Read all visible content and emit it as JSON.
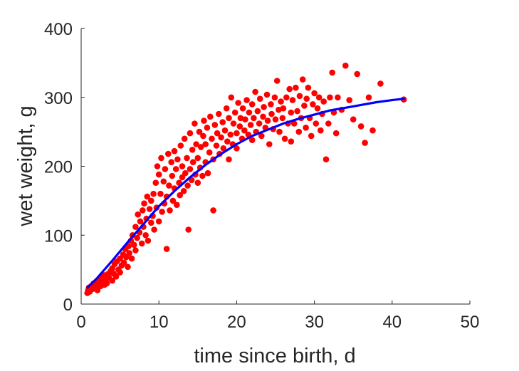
{
  "chart_data": {
    "type": "scatter",
    "xlabel": "time since birth, d",
    "ylabel": "wet weight, g",
    "xlim": [
      0,
      50
    ],
    "ylim": [
      0,
      400
    ],
    "xticks": [
      "0",
      "10",
      "20",
      "30",
      "40",
      "50"
    ],
    "yticks": [
      "0",
      "100",
      "200",
      "300",
      "400"
    ],
    "grid": false,
    "box": "left-bottom axes only",
    "series": [
      {
        "kind": "points",
        "color": "#ff0000",
        "points": [
          [
            0.8,
            16
          ],
          [
            0.9,
            20
          ],
          [
            1.0,
            24
          ],
          [
            1.1,
            18
          ],
          [
            1.3,
            26
          ],
          [
            1.5,
            22
          ],
          [
            1.6,
            30
          ],
          [
            1.8,
            25
          ],
          [
            2.0,
            28
          ],
          [
            2.1,
            20
          ],
          [
            2.2,
            34
          ],
          [
            2.4,
            30
          ],
          [
            2.5,
            26
          ],
          [
            2.6,
            38
          ],
          [
            2.8,
            32
          ],
          [
            3.0,
            28
          ],
          [
            3.0,
            42
          ],
          [
            3.2,
            36
          ],
          [
            3.3,
            30
          ],
          [
            3.5,
            44
          ],
          [
            3.6,
            38
          ],
          [
            3.8,
            48
          ],
          [
            4.0,
            34
          ],
          [
            4.0,
            52
          ],
          [
            4.2,
            44
          ],
          [
            4.3,
            58
          ],
          [
            4.5,
            40
          ],
          [
            4.6,
            62
          ],
          [
            4.8,
            50
          ],
          [
            5.0,
            46
          ],
          [
            5.0,
            66
          ],
          [
            5.2,
            56
          ],
          [
            5.4,
            72
          ],
          [
            5.5,
            60
          ],
          [
            5.7,
            80
          ],
          [
            5.8,
            68
          ],
          [
            6.0,
            54
          ],
          [
            6.1,
            84
          ],
          [
            6.2,
            74
          ],
          [
            6.4,
            92
          ],
          [
            6.5,
            66
          ],
          [
            6.6,
            100
          ],
          [
            6.8,
            86
          ],
          [
            7.0,
            78
          ],
          [
            7.0,
            112
          ],
          [
            7.2,
            96
          ],
          [
            7.3,
            130
          ],
          [
            7.5,
            104
          ],
          [
            7.6,
            120
          ],
          [
            7.8,
            88
          ],
          [
            7.9,
            136
          ],
          [
            8.0,
            112
          ],
          [
            8.1,
            146
          ],
          [
            8.3,
            100
          ],
          [
            8.4,
            124
          ],
          [
            8.5,
            156
          ],
          [
            8.6,
            92
          ],
          [
            8.8,
            138
          ],
          [
            9.0,
            118
          ],
          [
            9.0,
            150
          ],
          [
            9.2,
            128
          ],
          [
            9.3,
            160
          ],
          [
            9.4,
            108
          ],
          [
            9.6,
            176
          ],
          [
            9.7,
            140
          ],
          [
            9.8,
            200
          ],
          [
            10.0,
            120
          ],
          [
            10.0,
            188
          ],
          [
            10.2,
            160
          ],
          [
            10.3,
            212
          ],
          [
            10.4,
            134
          ],
          [
            10.6,
            178
          ],
          [
            10.7,
            146
          ],
          [
            10.8,
            196
          ],
          [
            11.0,
            80
          ],
          [
            11.0,
            156
          ],
          [
            11.2,
            218
          ],
          [
            11.3,
            172
          ],
          [
            11.4,
            136
          ],
          [
            11.6,
            206
          ],
          [
            11.7,
            186
          ],
          [
            11.8,
            150
          ],
          [
            12.0,
            168
          ],
          [
            12.0,
            222
          ],
          [
            12.2,
            196
          ],
          [
            12.3,
            144
          ],
          [
            12.4,
            210
          ],
          [
            12.6,
            176
          ],
          [
            12.7,
            158
          ],
          [
            12.8,
            230
          ],
          [
            13.0,
            184
          ],
          [
            13.0,
            200
          ],
          [
            13.2,
            164
          ],
          [
            13.3,
            240
          ],
          [
            13.4,
            190
          ],
          [
            13.6,
            212
          ],
          [
            13.7,
            172
          ],
          [
            13.8,
            108
          ],
          [
            14.0,
            196
          ],
          [
            14.0,
            248
          ],
          [
            14.2,
            180
          ],
          [
            14.3,
            224
          ],
          [
            14.4,
            206
          ],
          [
            14.6,
            262
          ],
          [
            14.7,
            188
          ],
          [
            14.8,
            232
          ],
          [
            15.0,
            176
          ],
          [
            15.0,
            212
          ],
          [
            15.2,
            250
          ],
          [
            15.3,
            198
          ],
          [
            15.4,
            228
          ],
          [
            15.6,
            186
          ],
          [
            15.7,
            244
          ],
          [
            15.8,
            266
          ],
          [
            16.0,
            206
          ],
          [
            16.0,
            232
          ],
          [
            16.2,
            256
          ],
          [
            16.3,
            190
          ],
          [
            16.5,
            220
          ],
          [
            16.6,
            272
          ],
          [
            16.8,
            240
          ],
          [
            17.0,
            136
          ],
          [
            17.0,
            210
          ],
          [
            17.2,
            260
          ],
          [
            17.4,
            230
          ],
          [
            17.5,
            248
          ],
          [
            17.7,
            276
          ],
          [
            17.8,
            218
          ],
          [
            18.0,
            242
          ],
          [
            18.2,
            264
          ],
          [
            18.3,
            226
          ],
          [
            18.5,
            252
          ],
          [
            18.7,
            284
          ],
          [
            18.8,
            236
          ],
          [
            19.0,
            210
          ],
          [
            19.0,
            270
          ],
          [
            19.2,
            246
          ],
          [
            19.3,
            300
          ],
          [
            19.5,
            232
          ],
          [
            19.6,
            262
          ],
          [
            19.8,
            278
          ],
          [
            20.0,
            248
          ],
          [
            20.0,
            226
          ],
          [
            20.2,
            292
          ],
          [
            20.4,
            258
          ],
          [
            20.5,
            270
          ],
          [
            20.7,
            240
          ],
          [
            20.8,
            284
          ],
          [
            21.0,
            252
          ],
          [
            21.1,
            268
          ],
          [
            21.3,
            296
          ],
          [
            21.5,
            246
          ],
          [
            21.6,
            278
          ],
          [
            21.8,
            260
          ],
          [
            22.0,
            290
          ],
          [
            22.0,
            238
          ],
          [
            22.2,
            270
          ],
          [
            22.4,
            308
          ],
          [
            22.5,
            250
          ],
          [
            22.7,
            280
          ],
          [
            22.9,
            262
          ],
          [
            23.0,
            298
          ],
          [
            23.2,
            244
          ],
          [
            23.4,
            272
          ],
          [
            23.5,
            286
          ],
          [
            23.7,
            256
          ],
          [
            23.9,
            304
          ],
          [
            24.0,
            266
          ],
          [
            24.2,
            232
          ],
          [
            24.4,
            290
          ],
          [
            24.5,
            276
          ],
          [
            24.7,
            254
          ],
          [
            24.9,
            300
          ],
          [
            25.0,
            268
          ],
          [
            25.2,
            324
          ],
          [
            25.4,
            282
          ],
          [
            25.5,
            250
          ],
          [
            25.7,
            294
          ],
          [
            25.9,
            270
          ],
          [
            26.0,
            284
          ],
          [
            26.2,
            240
          ],
          [
            26.4,
            300
          ],
          [
            26.6,
            262
          ],
          [
            26.8,
            312
          ],
          [
            27.0,
            278
          ],
          [
            27.0,
            236
          ],
          [
            27.2,
            296
          ],
          [
            27.4,
            262
          ],
          [
            27.6,
            314
          ],
          [
            27.8,
            280
          ],
          [
            28.0,
            250
          ],
          [
            28.1,
            302
          ],
          [
            28.3,
            270
          ],
          [
            28.5,
            326
          ],
          [
            28.7,
            288
          ],
          [
            28.9,
            256
          ],
          [
            29.0,
            298
          ],
          [
            29.2,
            314
          ],
          [
            29.4,
            270
          ],
          [
            29.6,
            244
          ],
          [
            29.8,
            290
          ],
          [
            30.0,
            306
          ],
          [
            30.2,
            262
          ],
          [
            30.4,
            284
          ],
          [
            30.6,
            300
          ],
          [
            30.8,
            252
          ],
          [
            31.0,
            276
          ],
          [
            31.2,
            294
          ],
          [
            31.5,
            210
          ],
          [
            31.8,
            262
          ],
          [
            32.0,
            300
          ],
          [
            32.3,
            336
          ],
          [
            32.5,
            278
          ],
          [
            32.8,
            248
          ],
          [
            33.0,
            300
          ],
          [
            33.5,
            282
          ],
          [
            34.0,
            346
          ],
          [
            34.5,
            296
          ],
          [
            35.0,
            268
          ],
          [
            35.5,
            334
          ],
          [
            36.0,
            258
          ],
          [
            36.5,
            234
          ],
          [
            37.0,
            300
          ],
          [
            37.5,
            252
          ],
          [
            38.5,
            320
          ],
          [
            41.5,
            297
          ]
        ]
      },
      {
        "kind": "line",
        "color": "#0000ff",
        "x": [
          0.8,
          2,
          4,
          6,
          8,
          10,
          12,
          14,
          16,
          18,
          20,
          22,
          24,
          26,
          28,
          30,
          32,
          34,
          36,
          38,
          40,
          41.5
        ],
        "y": [
          24,
          37,
          63,
          90,
          116,
          142,
          164,
          184,
          202,
          218,
          232,
          244,
          253,
          262,
          269,
          275,
          281,
          285,
          289,
          293,
          296,
          298
        ]
      }
    ]
  }
}
